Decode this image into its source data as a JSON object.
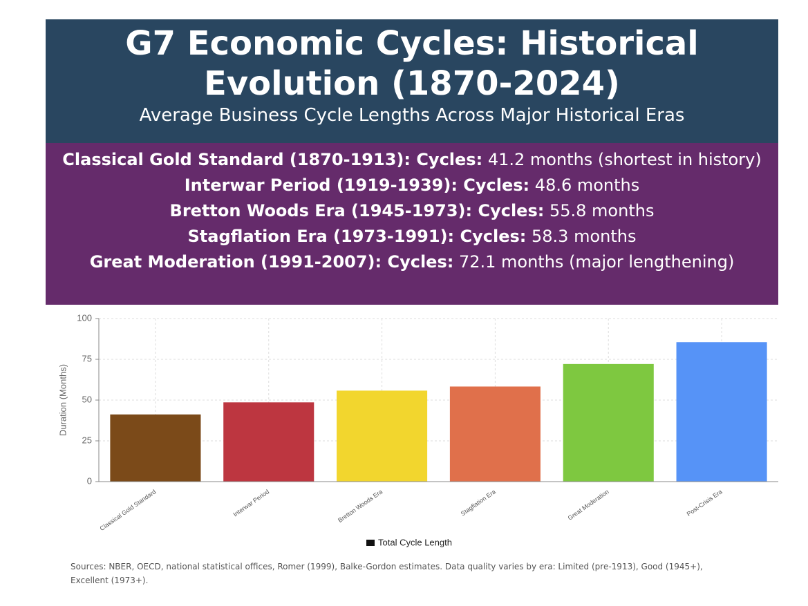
{
  "header": {
    "title": "G7 Economic Cycles: Historical Evolution (1870-2024)",
    "subtitle": "Average Business Cycle Lengths Across Major Historical Eras"
  },
  "notes": [
    {
      "label": "Classical Gold Standard (1870-1913): Cycles:",
      "text": "41.2 months (shortest in history)"
    },
    {
      "label": "Interwar Period (1919-1939): Cycles:",
      "text": "48.6 months"
    },
    {
      "label": "Bretton Woods Era (1945-1973): Cycles:",
      "text": "55.8 months"
    },
    {
      "label": "Stagflation Era (1973-1991): Cycles:",
      "text": "58.3 months"
    },
    {
      "label": "Great Moderation (1991-2007): Cycles:",
      "text": "72.1 months (major lengthening)"
    }
  ],
  "chart_data": {
    "type": "bar",
    "y_label": "Duration (Months)",
    "categories": [
      "Classical Gold Standard",
      "Interwar Period",
      "Bretton Woods Era",
      "Stagflation Era",
      "Great Moderation",
      "Post-Crisis Era"
    ],
    "series": [
      {
        "name": "Total Cycle Length",
        "color": "#111111",
        "bar_colors": [
          "#7b4a19",
          "#bd3640",
          "#f2d62e",
          "#e0704b",
          "#7ec840",
          "#5693f7"
        ],
        "values": [
          41.2,
          48.6,
          55.8,
          58.3,
          72.1,
          85.5
        ]
      }
    ],
    "ylim": [
      0,
      100
    ],
    "yticks": [
      0,
      25,
      50,
      75,
      100
    ],
    "grid": true
  },
  "footer": {
    "sources": "Sources: NBER, OECD, national statistical offices, Romer (1999), Balke-Gordon estimates. Data quality varies by era: Limited (pre-1913), Good (1945+), Excellent (1973+)."
  }
}
